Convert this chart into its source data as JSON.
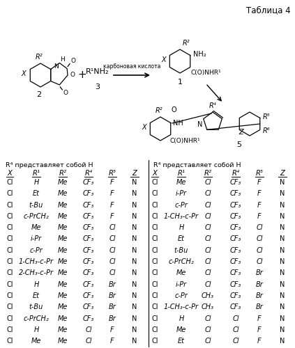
{
  "title": "Таблица 4",
  "header_left": "R⁴ представляет собой H",
  "header_right": "R⁴ представляет собой H",
  "cols": [
    "X",
    "R¹",
    "R²",
    "R⁴",
    "R⁵",
    "Z"
  ],
  "data_left": [
    [
      "Cl",
      "H",
      "Me",
      "CF₃",
      "F",
      "N"
    ],
    [
      "Cl",
      "Et",
      "Me",
      "CF₃",
      "F",
      "N"
    ],
    [
      "Cl",
      "t-Bu",
      "Me",
      "CF₃",
      "F",
      "N"
    ],
    [
      "Cl",
      "c-PrCH₂",
      "Me",
      "CF₃",
      "F",
      "N"
    ],
    [
      "Cl",
      "Me",
      "Me",
      "CF₃",
      "Cl",
      "N"
    ],
    [
      "Cl",
      "i-Pr",
      "Me",
      "CF₃",
      "Cl",
      "N"
    ],
    [
      "Cl",
      "c-Pr",
      "Me",
      "CF₃",
      "Cl",
      "N"
    ],
    [
      "Cl",
      "1-CH₃-c-Pr",
      "Me",
      "CF₃",
      "Cl",
      "N"
    ],
    [
      "Cl",
      "2-CH₃-c-Pr",
      "Me",
      "CF₃",
      "Cl",
      "N"
    ],
    [
      "Cl",
      "H",
      "Me",
      "CF₃",
      "Br",
      "N"
    ],
    [
      "Cl",
      "Et",
      "Me",
      "CF₃",
      "Br",
      "N"
    ],
    [
      "Cl",
      "t-Bu",
      "Me",
      "CF₃",
      "Br",
      "N"
    ],
    [
      "Cl",
      "c-PrCH₂",
      "Me",
      "CF₃",
      "Br",
      "N"
    ],
    [
      "Cl",
      "H",
      "Me",
      "Cl",
      "F",
      "N"
    ],
    [
      "Cl",
      "Me",
      "Me",
      "Cl",
      "F",
      "N"
    ]
  ],
  "data_right": [
    [
      "Cl",
      "Me",
      "Cl",
      "CF₃",
      "F",
      "N"
    ],
    [
      "Cl",
      "i-Pr",
      "Cl",
      "CF₃",
      "F",
      "N"
    ],
    [
      "Cl",
      "c-Pr",
      "Cl",
      "CF₃",
      "F",
      "N"
    ],
    [
      "Cl",
      "1-CH₃-c-Pr",
      "Cl",
      "CF₃",
      "F",
      "N"
    ],
    [
      "Cl",
      "H",
      "Cl",
      "CF₃",
      "Cl",
      "N"
    ],
    [
      "Cl",
      "Et",
      "Cl",
      "CF₃",
      "Cl",
      "N"
    ],
    [
      "Cl",
      "t-Bu",
      "Cl",
      "CF₃",
      "Cl",
      "N"
    ],
    [
      "Cl",
      "c-PrCH₂",
      "Cl",
      "CF₃",
      "Cl",
      "N"
    ],
    [
      "Cl",
      "Me",
      "Cl",
      "CF₃",
      "Br",
      "N"
    ],
    [
      "Cl",
      "i-Pr",
      "Cl",
      "CF₃",
      "Br",
      "N"
    ],
    [
      "Cl",
      "c-Pr",
      "CH₃",
      "CF₃",
      "Br",
      "N"
    ],
    [
      "Cl",
      "1-CH₃-c-Pr",
      "CH₃",
      "CF₃",
      "Br",
      "N"
    ],
    [
      "Cl",
      "H",
      "Cl",
      "Cl",
      "F",
      "N"
    ],
    [
      "Cl",
      "Me",
      "Cl",
      "Cl",
      "F",
      "N"
    ],
    [
      "Cl",
      "Et",
      "Cl",
      "Cl",
      "F",
      "N"
    ]
  ],
  "reaction_label": "карбоновая кислота",
  "bg_color": "#ffffff"
}
